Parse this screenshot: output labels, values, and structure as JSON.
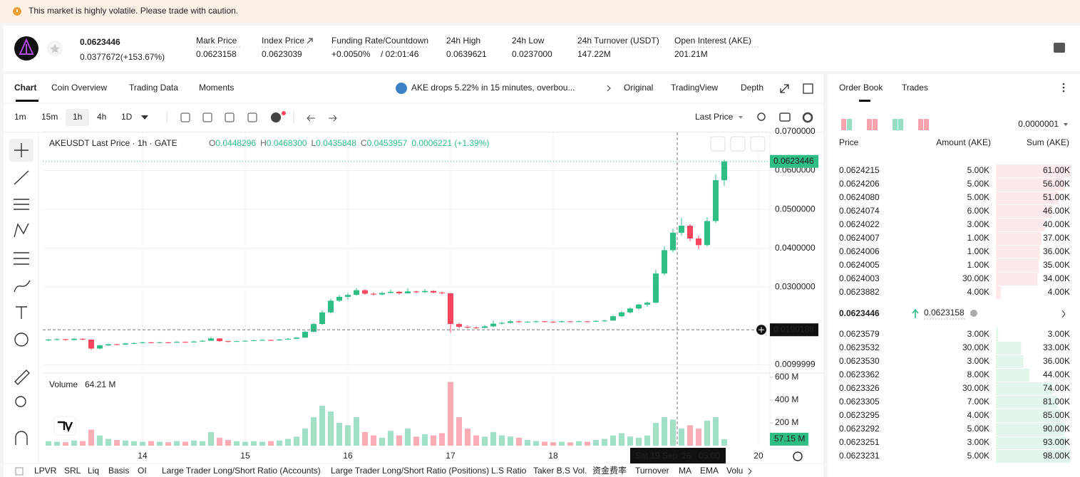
{
  "banner": {
    "text": "This market is highly volatile. Please trade with caution."
  },
  "header": {
    "price": "0.0623446",
    "change": "0.0377672(+153.67%)",
    "stats": [
      {
        "label": "Mark Price",
        "value": "0.0623158"
      },
      {
        "label": "Index Price",
        "value": "0.0623039"
      },
      {
        "label": "Funding Rate/Countdown",
        "value": "+0.0050%",
        "extra": "/ 02:01:46"
      },
      {
        "label": "24h High",
        "value": "0.0639621"
      },
      {
        "label": "24h Low",
        "value": "0.0237000"
      },
      {
        "label": "24h Turnover (USDT)",
        "value": "147.22M"
      },
      {
        "label": "Open Interest (AKE)",
        "value": "201.21M"
      }
    ]
  },
  "chart_tabs": [
    "Chart",
    "Coin Overview",
    "Trading Data",
    "Moments"
  ],
  "news": "AKE drops 5.22% in 15 minutes, overbou...",
  "view_tabs": [
    "Original",
    "TradingView",
    "Depth"
  ],
  "intervals": [
    "1m",
    "15m",
    "1h",
    "4h",
    "1D"
  ],
  "price_type": "Last Price",
  "bottom_tabs": [
    "LPVR",
    "SRL",
    "Liq",
    "Basis",
    "OI",
    "Large Trader Long/Short Ratio (Accounts)",
    "Large Trader Long/Short Ratio (Positions)",
    "L.S Ratio",
    "Taker B.S Vol.",
    "资金费率",
    "Turnover",
    "MA",
    "EMA",
    "Volu"
  ],
  "chart": {
    "type": "candlestick",
    "symbol": "AKEUSDT Last Price · 1h · GATE",
    "ohlc": [
      {
        "label": "O",
        "value": "0.0448296"
      },
      {
        "label": "H",
        "value": "0.0468300"
      },
      {
        "label": "L",
        "value": "0.0435848"
      },
      {
        "label": "C",
        "value": "0.0453957"
      }
    ],
    "change": "0.0006221 (+1.39%)",
    "up_color": "#2ebd85",
    "down_color": "#f6465d",
    "ylim": [
      0.00807,
      0.0698
    ],
    "yticks": [
      {
        "value": 0.07,
        "label": "0.0700000"
      },
      {
        "value": 0.06,
        "label": "0.0600000"
      },
      {
        "value": 0.05,
        "label": "0.0500000"
      },
      {
        "value": 0.04,
        "label": "0.0400000"
      },
      {
        "value": 0.03,
        "label": "0.0300000"
      },
      0.0099999
    ],
    "xlim": [
      0.67,
      170.67
    ],
    "xticks": [
      {
        "value": 24,
        "label": "14"
      },
      {
        "value": 48,
        "label": "15"
      },
      {
        "value": 72,
        "label": "16"
      },
      {
        "value": 96,
        "label": "17"
      },
      {
        "value": 120,
        "label": "18"
      },
      {
        "value": 168,
        "label": "20"
      }
    ],
    "grid": true,
    "x": [
      2,
      4,
      6,
      8,
      10,
      12,
      14,
      16,
      18,
      20,
      22,
      24,
      26,
      28,
      30,
      32,
      34,
      36,
      38,
      40,
      42,
      44,
      46,
      48,
      50,
      52,
      54,
      56,
      58,
      60,
      62,
      64,
      66,
      68,
      70,
      72,
      74,
      76,
      78,
      80,
      82,
      84,
      86,
      88,
      90,
      92,
      94,
      96,
      98,
      100,
      102,
      104,
      106,
      108,
      110,
      112,
      114,
      116,
      118,
      120,
      122,
      124,
      126,
      128,
      130,
      132,
      134,
      136,
      138,
      140,
      142,
      144,
      146,
      148,
      150,
      152,
      154,
      156,
      158,
      160
    ],
    "candles": [
      [
        0.0163,
        0.0167,
        0.0161,
        0.0165
      ],
      [
        0.0165,
        0.0168,
        0.0163,
        0.0166
      ],
      [
        0.0166,
        0.0167,
        0.0162,
        0.0164
      ],
      [
        0.0164,
        0.0169,
        0.0163,
        0.0167
      ],
      [
        0.0167,
        0.0168,
        0.0163,
        0.0165
      ],
      [
        0.0165,
        0.0166,
        0.0138,
        0.0142
      ],
      [
        0.0142,
        0.0152,
        0.014,
        0.015
      ],
      [
        0.015,
        0.0155,
        0.0148,
        0.0153
      ],
      [
        0.0153,
        0.0154,
        0.015,
        0.0152
      ],
      [
        0.0152,
        0.0157,
        0.0151,
        0.0155
      ],
      [
        0.0155,
        0.0158,
        0.0153,
        0.0156
      ],
      [
        0.0156,
        0.016,
        0.0155,
        0.0158
      ],
      [
        0.0158,
        0.0159,
        0.0155,
        0.0157
      ],
      [
        0.0157,
        0.016,
        0.0156,
        0.0158
      ],
      [
        0.0158,
        0.0159,
        0.0155,
        0.0157
      ],
      [
        0.0157,
        0.0161,
        0.0156,
        0.0159
      ],
      [
        0.0159,
        0.016,
        0.0156,
        0.0158
      ],
      [
        0.0158,
        0.0162,
        0.0157,
        0.016
      ],
      [
        0.016,
        0.0164,
        0.0159,
        0.0162
      ],
      [
        0.0162,
        0.0172,
        0.0161,
        0.0168
      ],
      [
        0.0168,
        0.0169,
        0.0159,
        0.0161
      ],
      [
        0.0161,
        0.0162,
        0.0158,
        0.016
      ],
      [
        0.016,
        0.0163,
        0.0159,
        0.0161
      ],
      [
        0.0161,
        0.0164,
        0.016,
        0.0162
      ],
      [
        0.0162,
        0.0165,
        0.0161,
        0.0163
      ],
      [
        0.0163,
        0.0166,
        0.0162,
        0.0164
      ],
      [
        0.0164,
        0.0165,
        0.0161,
        0.0163
      ],
      [
        0.0163,
        0.0167,
        0.0162,
        0.0165
      ],
      [
        0.0165,
        0.0169,
        0.0164,
        0.0167
      ],
      [
        0.0167,
        0.0172,
        0.0166,
        0.017
      ],
      [
        0.017,
        0.0188,
        0.0169,
        0.0185
      ],
      [
        0.0185,
        0.0208,
        0.0183,
        0.0205
      ],
      [
        0.0205,
        0.024,
        0.0203,
        0.0235
      ],
      [
        0.0235,
        0.027,
        0.0232,
        0.0265
      ],
      [
        0.0265,
        0.028,
        0.0262,
        0.0275
      ],
      [
        0.0275,
        0.0285,
        0.0268,
        0.028
      ],
      [
        0.028,
        0.0298,
        0.0278,
        0.0292
      ],
      [
        0.0292,
        0.0294,
        0.028,
        0.0283
      ],
      [
        0.0283,
        0.0286,
        0.0278,
        0.0281
      ],
      [
        0.0281,
        0.0288,
        0.0279,
        0.0285
      ],
      [
        0.0285,
        0.0293,
        0.0283,
        0.0288
      ],
      [
        0.0288,
        0.029,
        0.0281,
        0.0284
      ],
      [
        0.0284,
        0.0297,
        0.0283,
        0.0289
      ],
      [
        0.0289,
        0.0291,
        0.0284,
        0.0287
      ],
      [
        0.0287,
        0.0295,
        0.0285,
        0.029
      ],
      [
        0.029,
        0.0292,
        0.0284,
        0.0286
      ],
      [
        0.0286,
        0.0289,
        0.0281,
        0.0284
      ],
      [
        0.0284,
        0.0285,
        0.0183,
        0.0205
      ],
      [
        0.0205,
        0.0208,
        0.0194,
        0.0198
      ],
      [
        0.0198,
        0.0201,
        0.0193,
        0.0196
      ],
      [
        0.0196,
        0.0199,
        0.0192,
        0.0195
      ],
      [
        0.0195,
        0.0203,
        0.0194,
        0.0199
      ],
      [
        0.0199,
        0.0214,
        0.0197,
        0.0206
      ],
      [
        0.0206,
        0.0211,
        0.0203,
        0.0208
      ],
      [
        0.0208,
        0.0216,
        0.0206,
        0.0212
      ],
      [
        0.0212,
        0.0214,
        0.0208,
        0.021
      ],
      [
        0.021,
        0.0213,
        0.0208,
        0.0211
      ],
      [
        0.0211,
        0.0214,
        0.0209,
        0.0212
      ],
      [
        0.0212,
        0.0213,
        0.0209,
        0.0211
      ],
      [
        0.0211,
        0.0213,
        0.0208,
        0.021
      ],
      [
        0.021,
        0.0214,
        0.0209,
        0.0212
      ],
      [
        0.0212,
        0.0213,
        0.0209,
        0.0211
      ],
      [
        0.0211,
        0.0214,
        0.021,
        0.0212
      ],
      [
        0.0212,
        0.0213,
        0.0209,
        0.0211
      ],
      [
        0.0211,
        0.0215,
        0.021,
        0.0213
      ],
      [
        0.0213,
        0.0216,
        0.0211,
        0.0214
      ],
      [
        0.0214,
        0.0228,
        0.0213,
        0.0225
      ],
      [
        0.0225,
        0.0238,
        0.0222,
        0.0235
      ],
      [
        0.0235,
        0.0248,
        0.0232,
        0.0245
      ],
      [
        0.0245,
        0.0258,
        0.0242,
        0.0255
      ],
      [
        0.0255,
        0.0263,
        0.025,
        0.026
      ],
      [
        0.026,
        0.0345,
        0.0258,
        0.0335
      ],
      [
        0.0335,
        0.0405,
        0.033,
        0.0395
      ],
      [
        0.0395,
        0.045,
        0.039,
        0.044
      ],
      [
        0.044,
        0.0478,
        0.0432,
        0.0458
      ],
      [
        0.0458,
        0.0462,
        0.0418,
        0.0425
      ],
      [
        0.0425,
        0.0432,
        0.0398,
        0.0408
      ],
      [
        0.0408,
        0.048,
        0.0405,
        0.047
      ],
      [
        0.047,
        0.059,
        0.0465,
        0.0575
      ],
      [
        0.0575,
        0.0628,
        0.056,
        0.0623446
      ]
    ],
    "crosshair": {
      "x": 149,
      "date_label": "Sat 19 Sep '26",
      "time_label": "05:00",
      "price": 0.0190188
    },
    "volume": {
      "label": "Volume",
      "legend_value": "64.21 M",
      "ylim": [
        0,
        631
      ],
      "yticks": [
        {
          "value": 600,
          "label": "600 M"
        },
        {
          "value": 400,
          "label": "400 M"
        },
        {
          "value": 200,
          "label": "200 M"
        }
      ],
      "values": [
        40,
        35,
        30,
        45,
        40,
        140,
        90,
        60,
        50,
        45,
        40,
        35,
        40,
        35,
        30,
        40,
        35,
        45,
        40,
        120,
        70,
        50,
        40,
        35,
        40,
        35,
        40,
        45,
        60,
        80,
        150,
        250,
        350,
        300,
        200,
        180,
        250,
        120,
        90,
        70,
        130,
        90,
        150,
        80,
        100,
        90,
        110,
        560,
        250,
        150,
        90,
        80,
        120,
        90,
        80,
        70,
        50,
        40,
        35,
        30,
        35,
        30,
        40,
        35,
        50,
        60,
        90,
        110,
        80,
        70,
        90,
        200,
        250,
        230,
        150,
        180,
        150,
        220,
        250,
        57.15
      ],
      "last_value_label": "57.15 M"
    }
  },
  "order_book": {
    "tabs": [
      "Order Book",
      "Trades"
    ],
    "precision": "0.0000001",
    "columns": [
      "Price",
      "Amount (AKE)",
      "Sum (AKE)"
    ],
    "asks": [
      {
        "price": "0.0624215",
        "amount": "5.00K",
        "sum": {
          "value": 61000,
          "label": "61.00K"
        }
      },
      {
        "price": "0.0624206",
        "amount": "5.00K",
        "sum": {
          "value": 56000,
          "label": "56.00K"
        }
      },
      {
        "price": "0.0624080",
        "amount": "5.00K",
        "sum": {
          "value": 51000,
          "label": "51.00K"
        }
      },
      {
        "price": "0.0624074",
        "amount": "6.00K",
        "sum": {
          "value": 46000,
          "label": "46.00K"
        }
      },
      {
        "price": "0.0624022",
        "amount": "3.00K",
        "sum": {
          "value": 40000,
          "label": "40.00K"
        }
      },
      {
        "price": "0.0624007",
        "amount": "1.00K",
        "sum": {
          "value": 37000,
          "label": "37.00K"
        }
      },
      {
        "price": "0.0624006",
        "amount": "1.00K",
        "sum": {
          "value": 36000,
          "label": "36.00K"
        }
      },
      {
        "price": "0.0624005",
        "amount": "1.00K",
        "sum": {
          "value": 35000,
          "label": "35.00K"
        }
      },
      {
        "price": "0.0624003",
        "amount": "30.00K",
        "sum": {
          "value": 34000,
          "label": "34.00K"
        }
      },
      {
        "price": "0.0623882",
        "amount": "4.00K",
        "sum": {
          "value": 4000,
          "label": "4.00K"
        }
      }
    ],
    "last_price": "0.0623446",
    "mark_price": "0.0623158",
    "bids": [
      {
        "price": "0.0623579",
        "amount": "3.00K",
        "sum": {
          "value": 3000,
          "label": "3.00K"
        }
      },
      {
        "price": "0.0623532",
        "amount": "30.00K",
        "sum": {
          "value": 33000,
          "label": "33.00K"
        }
      },
      {
        "price": "0.0623530",
        "amount": "3.00K",
        "sum": {
          "value": 36000,
          "label": "36.00K"
        }
      },
      {
        "price": "0.0623362",
        "amount": "8.00K",
        "sum": {
          "value": 44000,
          "label": "44.00K"
        }
      },
      {
        "price": "0.0623326",
        "amount": "30.00K",
        "sum": {
          "value": 74000,
          "label": "74.00K"
        }
      },
      {
        "price": "0.0623305",
        "amount": "7.00K",
        "sum": {
          "value": 81000,
          "label": "81.00K"
        }
      },
      {
        "price": "0.0623295",
        "amount": "4.00K",
        "sum": {
          "value": 85000,
          "label": "85.00K"
        }
      },
      {
        "price": "0.0623292",
        "amount": "5.00K",
        "sum": {
          "value": 90000,
          "label": "90.00K"
        }
      },
      {
        "price": "0.0623251",
        "amount": "3.00K",
        "sum": {
          "value": 93000,
          "label": "93.00K"
        }
      },
      {
        "price": "0.0623231",
        "amount": "5.00K",
        "sum": {
          "value": 98000,
          "label": "98.00K"
        }
      }
    ]
  }
}
